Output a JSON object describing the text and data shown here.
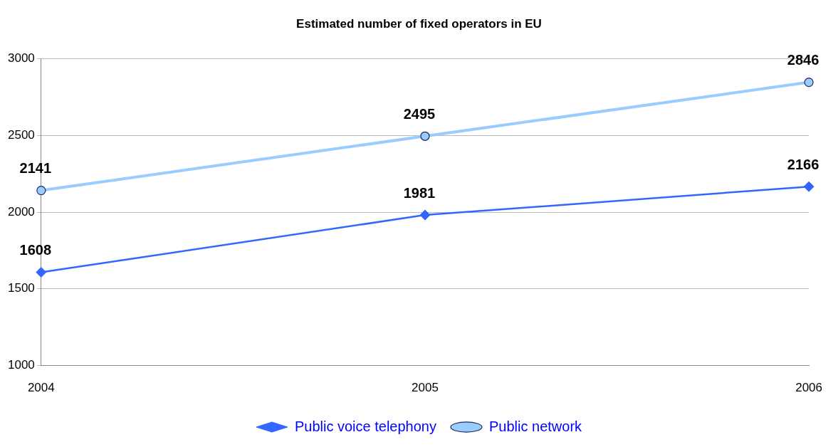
{
  "chart_data": {
    "type": "line",
    "title": "Estimated number of fixed operators in EU",
    "categories": [
      "2004",
      "2005",
      "2006"
    ],
    "series": [
      {
        "name": "Public voice telephony",
        "color": "#3366ff",
        "marker": "diamond",
        "values": [
          1608,
          1981,
          2166
        ]
      },
      {
        "name": "Public network",
        "color": "#99ccff",
        "marker": "circle",
        "values": [
          2141,
          2495,
          2846
        ]
      }
    ],
    "ylim": [
      1000,
      3000
    ],
    "yticks": [
      1000,
      1500,
      2000,
      2500,
      3000
    ],
    "grid": "y",
    "legend": "bottom",
    "data_labels": true,
    "line_style": "solid"
  }
}
